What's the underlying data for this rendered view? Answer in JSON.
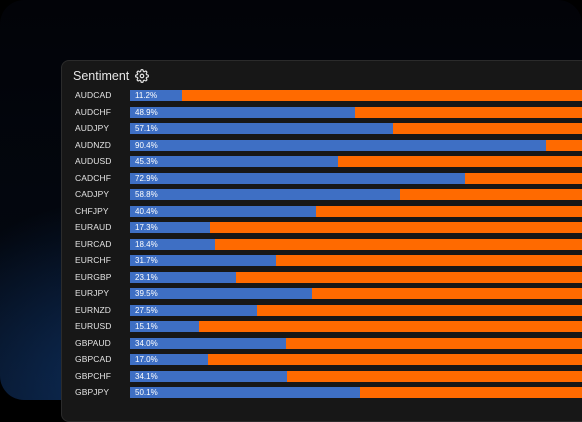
{
  "panel": {
    "title": "Sentiment",
    "settings_icon": "gear-icon"
  },
  "colors": {
    "long": "#3e6fc4",
    "short": "#ff6a00",
    "panel_bg": "#171717"
  },
  "rows": [
    {
      "pair": "AUDCAD",
      "percent": 11.2,
      "label": "11.2%"
    },
    {
      "pair": "AUDCHF",
      "percent": 48.9,
      "label": "48.9%"
    },
    {
      "pair": "AUDJPY",
      "percent": 57.1,
      "label": "57.1%"
    },
    {
      "pair": "AUDNZD",
      "percent": 90.4,
      "label": "90.4%"
    },
    {
      "pair": "AUDUSD",
      "percent": 45.3,
      "label": "45.3%"
    },
    {
      "pair": "CADCHF",
      "percent": 72.9,
      "label": "72.9%"
    },
    {
      "pair": "CADJPY",
      "percent": 58.8,
      "label": "58.8%"
    },
    {
      "pair": "CHFJPY",
      "percent": 40.4,
      "label": "40.4%"
    },
    {
      "pair": "EURAUD",
      "percent": 17.3,
      "label": "17.3%"
    },
    {
      "pair": "EURCAD",
      "percent": 18.4,
      "label": "18.4%"
    },
    {
      "pair": "EURCHF",
      "percent": 31.7,
      "label": "31.7%"
    },
    {
      "pair": "EURGBP",
      "percent": 23.1,
      "label": "23.1%"
    },
    {
      "pair": "EURJPY",
      "percent": 39.5,
      "label": "39.5%"
    },
    {
      "pair": "EURNZD",
      "percent": 27.5,
      "label": "27.5%"
    },
    {
      "pair": "EURUSD",
      "percent": 15.1,
      "label": "15.1%"
    },
    {
      "pair": "GBPAUD",
      "percent": 34.0,
      "label": "34.0%"
    },
    {
      "pair": "GBPCAD",
      "percent": 17.0,
      "label": "17.0%"
    },
    {
      "pair": "GBPCHF",
      "percent": 34.1,
      "label": "34.1%"
    },
    {
      "pair": "GBPJPY",
      "percent": 50.1,
      "label": "50.1%"
    }
  ]
}
